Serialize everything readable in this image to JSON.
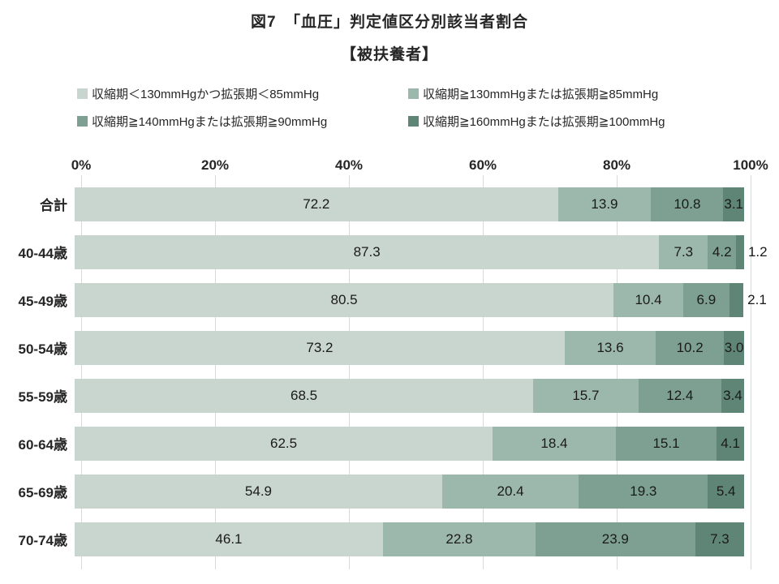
{
  "title": "図7　「血圧」判定値区分別該当者割合",
  "subtitle": "【被扶養者】",
  "chart_data": {
    "type": "bar",
    "orientation": "horizontal-stacked",
    "title": "図7　「血圧」判定値区分別該当者割合",
    "subtitle": "【被扶養者】",
    "categories": [
      "合計",
      "40-44歳",
      "45-49歳",
      "50-54歳",
      "55-59歳",
      "60-64歳",
      "65-69歳",
      "70-74歳"
    ],
    "series": [
      {
        "name": "収縮期＜130mmHgかつ拡張期＜85mmHg",
        "color": "#c9d6d0",
        "values": [
          72.2,
          87.3,
          80.5,
          73.2,
          68.5,
          62.5,
          54.9,
          46.1
        ]
      },
      {
        "name": "収縮期≧130mmHgまたは拡張期≧85mmHg",
        "color": "#9cb8ac",
        "values": [
          13.9,
          7.3,
          10.4,
          13.6,
          15.7,
          18.4,
          20.4,
          22.8
        ]
      },
      {
        "name": "収縮期≧140mmHgまたは拡張期≧90mmHg",
        "color": "#7da093",
        "values": [
          10.8,
          4.2,
          6.9,
          10.2,
          12.4,
          15.1,
          19.3,
          23.9
        ]
      },
      {
        "name": "収縮期≧160mmHgまたは拡張期≧100mmHg",
        "color": "#5e8576",
        "values": [
          3.1,
          1.2,
          2.1,
          3.0,
          3.4,
          4.1,
          5.4,
          7.3
        ]
      }
    ],
    "x_ticks": [
      "0%",
      "20%",
      "40%",
      "60%",
      "80%",
      "100%"
    ],
    "xlim": [
      0,
      100
    ],
    "grid": "vertical",
    "gridline_color": "#d9d9d9",
    "legend_position": "top",
    "value_labels": "inside, outside-right when segment < 2.5%"
  }
}
